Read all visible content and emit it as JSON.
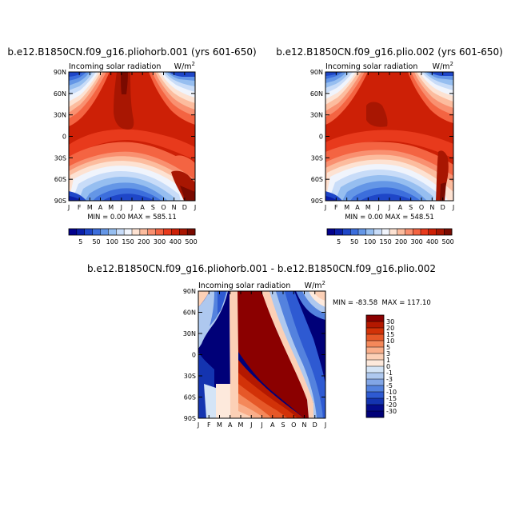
{
  "chart_data": [
    {
      "type": "heatmap",
      "id": "p1",
      "title": "b.e12.B1850CN.f09_g16.pliohorb.001 (yrs 601-650)",
      "left_label": "Incoming solar radiation",
      "units": "W/m",
      "units_sup": "2",
      "x_ticks": [
        "J",
        "F",
        "M",
        "A",
        "M",
        "J",
        "J",
        "A",
        "S",
        "O",
        "N",
        "D",
        "J"
      ],
      "y_ticks": [
        "90N",
        "60N",
        "30N",
        "0",
        "30S",
        "60S",
        "90S"
      ],
      "min_label": "MIN =",
      "min_value": "0.00",
      "max_label": "MAX =",
      "max_value": "585.11",
      "colorbar_labels": [
        "5",
        "50",
        "100",
        "150",
        "200",
        "300",
        "400",
        "500"
      ],
      "colorbar_orientation": "horizontal"
    },
    {
      "type": "heatmap",
      "id": "p2",
      "title": "b.e12.B1850CN.f09_g16.plio.002 (yrs 601-650)",
      "left_label": "Incoming solar radiation",
      "units": "W/m",
      "units_sup": "2",
      "x_ticks": [
        "J",
        "F",
        "M",
        "A",
        "M",
        "J",
        "J",
        "A",
        "S",
        "O",
        "N",
        "D",
        "J"
      ],
      "y_ticks": [
        "90N",
        "60N",
        "30N",
        "0",
        "30S",
        "60S",
        "90S"
      ],
      "min_label": "MIN =",
      "min_value": "0.00",
      "max_label": "MAX =",
      "max_value": "548.51",
      "colorbar_labels": [
        "5",
        "50",
        "100",
        "150",
        "200",
        "300",
        "400",
        "500"
      ],
      "colorbar_orientation": "horizontal"
    },
    {
      "type": "heatmap",
      "id": "p3",
      "title": "b.e12.B1850CN.f09_g16.pliohorb.001 - b.e12.B1850CN.f09_g16.plio.002",
      "left_label": "Incoming solar radiation",
      "units": "W/m",
      "units_sup": "2",
      "x_ticks": [
        "J",
        "F",
        "M",
        "A",
        "M",
        "J",
        "J",
        "A",
        "S",
        "O",
        "N",
        "D",
        "J"
      ],
      "y_ticks": [
        "90N",
        "60N",
        "30N",
        "0",
        "30S",
        "60S",
        "90S"
      ],
      "min_max_text": "MIN = -83.58  MAX = 117.10",
      "colorbar_labels": [
        "30",
        "20",
        "15",
        "10",
        "5",
        "3",
        "1",
        "0",
        "-1",
        "-3",
        "-5",
        "-10",
        "-15",
        "-20",
        "-30"
      ],
      "colorbar_orientation": "vertical"
    }
  ],
  "colors": {
    "seq": [
      "#02008c",
      "#0a1ea8",
      "#1e46c8",
      "#3c6edc",
      "#6496e6",
      "#96bef0",
      "#c8dcf8",
      "#f0f4fc",
      "#fde2d2",
      "#fcbc9e",
      "#f99070",
      "#f46442",
      "#e83a1c",
      "#cd2006",
      "#a81602",
      "#7a0a00"
    ],
    "div": [
      "#8b0000",
      "#b41800",
      "#d23208",
      "#e65828",
      "#f4885a",
      "#f9ae8a",
      "#fcd0b6",
      "#fde9dc",
      "#d4e4f6",
      "#aec8ef",
      "#82a6e6",
      "#5482de",
      "#2e5ad2",
      "#1434b0",
      "#040c8c",
      "#000078"
    ]
  }
}
